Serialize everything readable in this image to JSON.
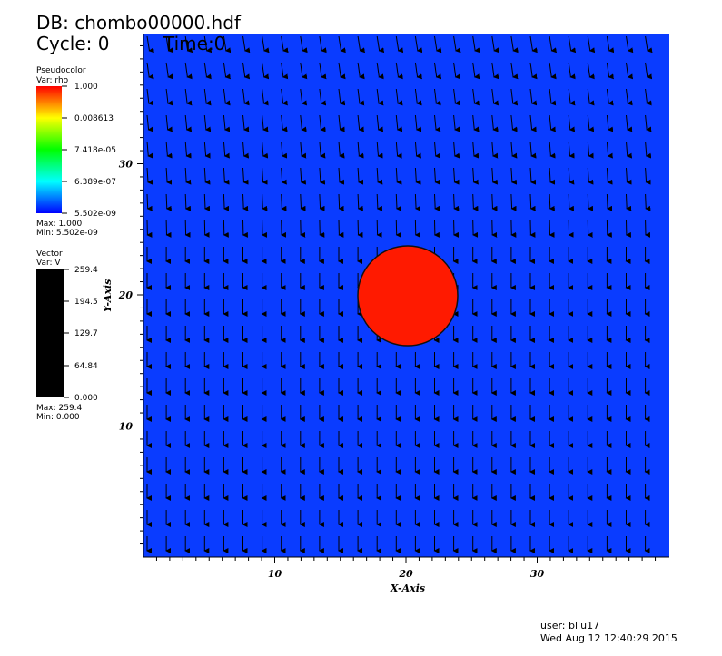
{
  "header": {
    "db": "DB: chombo00000.hdf",
    "cycle": "Cycle: 0",
    "time": "Time:0"
  },
  "legend_pseudocolor": {
    "title": "Pseudocolor",
    "var": "Var: rho",
    "labels": [
      "1.000",
      "0.008613",
      "7.418e-05",
      "6.389e-07",
      "5.502e-09"
    ],
    "max": "Max:  1.000",
    "min": "Min:  5.502e-09"
  },
  "legend_vector": {
    "title": "Vector",
    "var": "Var: V",
    "labels": [
      "259.4",
      "194.5",
      "129.7",
      "64.84",
      "0.000"
    ],
    "max": "Max:  259.4",
    "min": "Min:  0.000"
  },
  "axes": {
    "x_label": "X-Axis",
    "y_label": "Y-Axis",
    "x_ticks": [
      "10",
      "20",
      "30"
    ],
    "y_ticks": [
      "10",
      "20",
      "30"
    ]
  },
  "footer": {
    "user": "user: bllu17",
    "date": "Wed Aug 12 12:40:29 2015"
  }
}
